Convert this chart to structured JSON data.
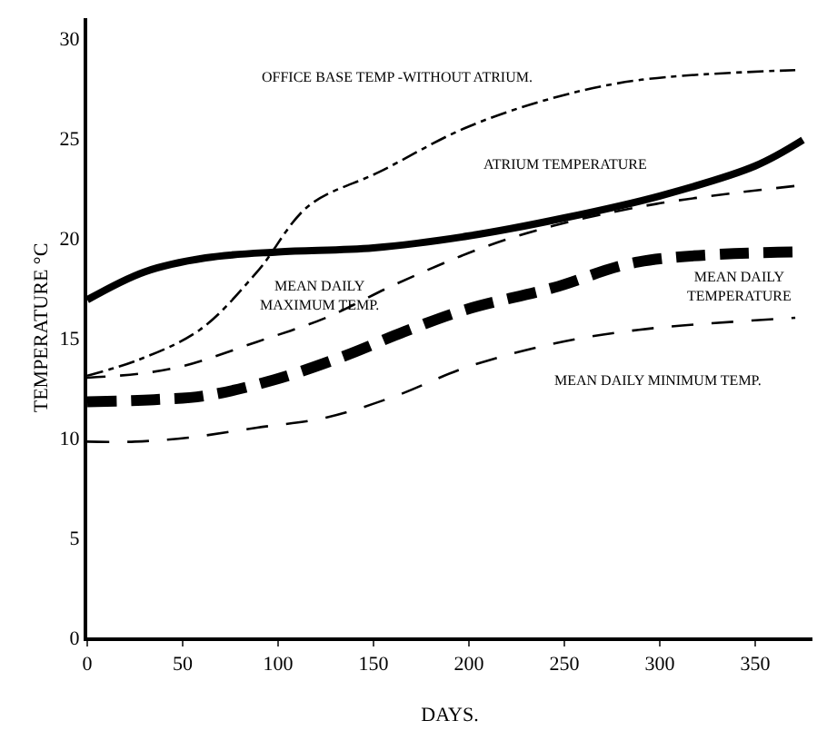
{
  "chart_data": {
    "type": "line",
    "xlabel": "DAYS.",
    "ylabel": "TEMPERATURE °C",
    "xlim": [
      0,
      380
    ],
    "ylim": [
      0,
      31
    ],
    "xticks": [
      0,
      50,
      100,
      150,
      200,
      250,
      300,
      350
    ],
    "yticks": [
      0,
      5,
      10,
      15,
      20,
      25,
      30
    ],
    "grid": false,
    "legend": false,
    "marker": "none",
    "series": [
      {
        "name": "OFFICE BASE TEMP -WITHOUT ATRIUM.",
        "color": "#000000",
        "line_style": "dashdot",
        "x": [
          0,
          27,
          59,
          89,
          116,
          153,
          198,
          244,
          289,
          371
        ],
        "values": [
          13.1,
          13.9,
          15.4,
          18.3,
          21.6,
          23.3,
          25.5,
          27,
          27.9,
          28.4
        ]
      },
      {
        "name": "ATRIUM TEMPERATURE",
        "color": "#000000",
        "line_style": "solid",
        "x": [
          0,
          30,
          62,
          100,
          150,
          200,
          250,
          300,
          350,
          375
        ],
        "values": [
          16.9,
          18.3,
          19.0,
          19.3,
          19.5,
          20.1,
          21.0,
          22.1,
          23.6,
          24.9
        ]
      },
      {
        "name": "MEAN DAILY MAXIMUM TEMP.",
        "color": "#000000",
        "line_style": "dashed",
        "x": [
          0,
          27,
          51,
          89,
          125,
          162,
          207,
          244,
          298,
          371
        ],
        "values": [
          13,
          13.2,
          13.6,
          14.8,
          16,
          17.7,
          19.5,
          20.6,
          21.7,
          22.6
        ]
      },
      {
        "name": "MEAN DAILY TEMPERATURE",
        "color": "#000000",
        "line_style": "dashed",
        "x": [
          0,
          35,
          62,
          98,
          135,
          166,
          198,
          244,
          289,
          371
        ],
        "values": [
          11.8,
          11.9,
          12.1,
          12.9,
          14.1,
          15.3,
          16.4,
          17.5,
          18.8,
          19.3
        ]
      },
      {
        "name": "MEAN DAILY MINIMUM TEMP.",
        "color": "#000000",
        "line_style": "dashed",
        "x": [
          0,
          25,
          53,
          89,
          125,
          162,
          198,
          244,
          289,
          371
        ],
        "values": [
          9.8,
          9.8,
          10,
          10.5,
          11,
          12.1,
          13.5,
          14.7,
          15.4,
          16
        ]
      }
    ]
  }
}
